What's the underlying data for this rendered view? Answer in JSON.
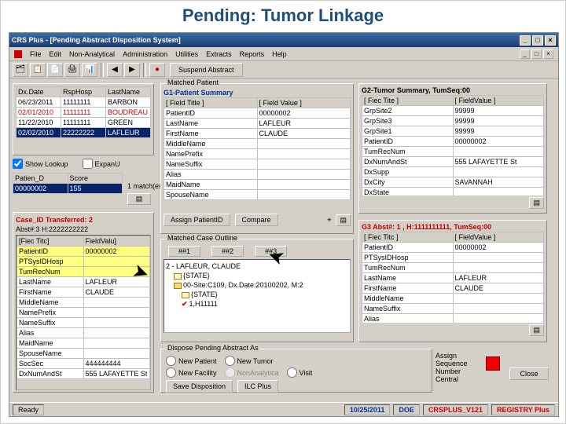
{
  "slide": {
    "title": "Pending: Tumor Linkage"
  },
  "window": {
    "title": "CRS Plus - [Pending Abstract Disposition System]",
    "menus": [
      "File",
      "Edit",
      "Non-Analytical",
      "Administration",
      "Utilities",
      "Extracts",
      "Reports",
      "Help"
    ],
    "suspend": "Suspend Abstract"
  },
  "leftTop": {
    "cols": [
      "Dx.Date",
      "RspHosp",
      "LastName"
    ],
    "rows": [
      [
        "06/23/2011",
        "11111111",
        "BARBON"
      ],
      [
        "02/01/2010",
        "11111111",
        "BOUDREAU"
      ],
      [
        "11/22/2010",
        "11111111",
        "GREEN"
      ],
      [
        "02/02/2010",
        "22222222",
        "LAFLEUR"
      ]
    ],
    "selectedIndex": 3,
    "redRowIndex": 1,
    "showLookup": "Show Lookup",
    "expand": "ExpanU"
  },
  "match": {
    "cols": [
      "Patien_D",
      "Score"
    ],
    "rows": [
      [
        "00000002",
        "155"
      ]
    ],
    "matches_label": "1 match(es)"
  },
  "case": {
    "title": "Case_ID Transferred: 2",
    "abst_label": "Abst#:3 H:2222222222",
    "cols": [
      "[Fiec Titc]",
      "FieldValu]"
    ],
    "rows": [
      [
        "PatientID",
        "00000002"
      ],
      [
        "PTSysIDHosp",
        ""
      ],
      [
        "TumRecNum",
        ""
      ],
      [
        "LastName",
        "LAFLEUR"
      ],
      [
        "FirstName",
        "CLAUDE"
      ],
      [
        "MiddleName",
        ""
      ],
      [
        "NamePrefix",
        ""
      ],
      [
        "NameSuffix",
        ""
      ],
      [
        "Alias",
        ""
      ],
      [
        "MaidName",
        ""
      ],
      [
        "SpouseName",
        ""
      ],
      [
        "SocSec",
        "444444444"
      ],
      [
        "DxNumAndSt",
        "555 LAFAYETTE St"
      ]
    ]
  },
  "g1": {
    "grpTitle": "Matched Patient",
    "title": "G1-Patient Summary",
    "cols": [
      "[ Field Title ]",
      "[ Field Value ]"
    ],
    "rows": [
      [
        "PatientID",
        "00000002"
      ],
      [
        "LastName",
        "LAFLEUR"
      ],
      [
        "FirstName",
        "CLAUDE"
      ],
      [
        "MiddleName",
        ""
      ],
      [
        "NamePrefix",
        ""
      ],
      [
        "NameSuffix",
        ""
      ],
      [
        "Alias",
        ""
      ],
      [
        "MaidName",
        ""
      ],
      [
        "SpouseName",
        ""
      ]
    ],
    "assign": "Assign PatientID",
    "compare": "Compare"
  },
  "g2": {
    "title": "G2-Tumor Summary, TumSeq:00",
    "cols": [
      "[ Fiec Tite ]",
      "[ FieldValue ]"
    ],
    "rows": [
      [
        "GrpSite2",
        "99999"
      ],
      [
        "GrpSite3",
        "99999"
      ],
      [
        "GrpSite1",
        "99999"
      ],
      [
        "PatientID",
        "00000002"
      ],
      [
        "TumRecNum",
        ""
      ],
      [
        "DxNumAndSt",
        "555 LAFAYETTE St"
      ],
      [
        "DxSupp",
        ""
      ],
      [
        "DxCity",
        "SAVANNAH"
      ],
      [
        "DxState",
        ""
      ]
    ]
  },
  "g3": {
    "title": "G3 Abst#: 1 , H:1111111111, TumSeq:00",
    "cols": [
      "[ Fiec Titc ]",
      "[ FieldValue ]"
    ],
    "rows": [
      [
        "PatientID",
        "00000002"
      ],
      [
        "PTSysIDHosp",
        ""
      ],
      [
        "TumRecNum",
        ""
      ],
      [
        "LastName",
        "LAFLEUR"
      ],
      [
        "FirstName",
        "CLAUDE"
      ],
      [
        "MiddleName",
        ""
      ],
      [
        "NameSuffix",
        ""
      ],
      [
        "Alias",
        ""
      ]
    ]
  },
  "outline": {
    "title": "Matched Case Outline",
    "tabs": [
      "##1",
      "##2",
      "##3"
    ],
    "nodes": [
      {
        "lvl": 0,
        "txt": "2 - LAFLEUR, CLAUDE"
      },
      {
        "lvl": 1,
        "txt": "{STATE}",
        "folder": "open"
      },
      {
        "lvl": 1,
        "txt": "00-Site:C109, Dx.Date:20100202, M:2",
        "folder": "closed"
      },
      {
        "lvl": 2,
        "txt": "{STATE}",
        "folder": "open"
      },
      {
        "lvl": 2,
        "txt": "1,H11111",
        "check": true
      }
    ]
  },
  "dispose": {
    "title": "Dispose Pending Abstract As",
    "opts": [
      "New Patient",
      "New Tumor",
      "New Facility",
      "NonAnalytica",
      "Visit"
    ],
    "save": "Save Disposition",
    "ilc": "ILC Plus",
    "assign": "Assign Sequence Number Central",
    "close": "Close"
  },
  "status": {
    "ready": "Ready",
    "date": "10/25/2011",
    "user": "DOE",
    "ver": "CRSPLUS_V121",
    "reg": "REGISTRY Plus"
  }
}
